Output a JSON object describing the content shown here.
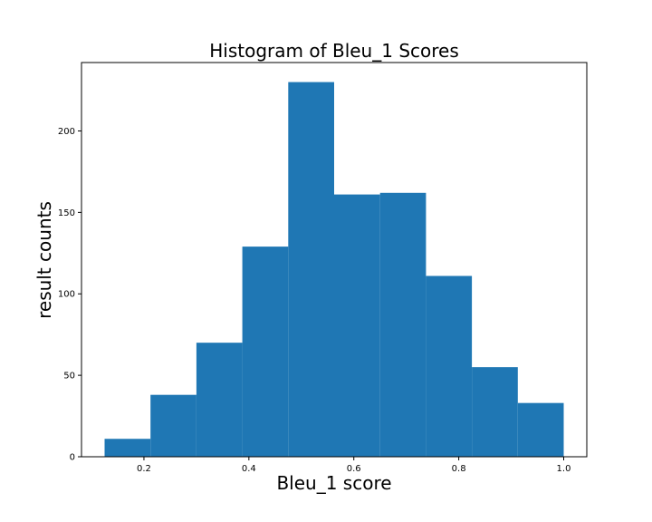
{
  "chart_data": {
    "type": "bar",
    "title": "Histogram of Bleu_1 Scores",
    "xlabel": "Bleu_1 score",
    "ylabel": "result counts",
    "xlim": [
      0.081,
      1.044
    ],
    "ylim": [
      0,
      242
    ],
    "bar_color": "#1f77b4",
    "bins": [
      {
        "x0": 0.125,
        "x1": 0.2125,
        "count": 11
      },
      {
        "x0": 0.2125,
        "x1": 0.3,
        "count": 38
      },
      {
        "x0": 0.3,
        "x1": 0.3875,
        "count": 70
      },
      {
        "x0": 0.3875,
        "x1": 0.475,
        "count": 129
      },
      {
        "x0": 0.475,
        "x1": 0.5625,
        "count": 230
      },
      {
        "x0": 0.5625,
        "x1": 0.65,
        "count": 161
      },
      {
        "x0": 0.65,
        "x1": 0.7375,
        "count": 162
      },
      {
        "x0": 0.7375,
        "x1": 0.825,
        "count": 111
      },
      {
        "x0": 0.825,
        "x1": 0.9125,
        "count": 55
      },
      {
        "x0": 0.9125,
        "x1": 1.0,
        "count": 33
      }
    ],
    "xticks": [
      0.2,
      0.4,
      0.6,
      0.8,
      1.0
    ],
    "xtick_labels": [
      "0.2",
      "0.4",
      "0.6",
      "0.8",
      "1.0"
    ],
    "yticks": [
      0,
      50,
      100,
      150,
      200
    ],
    "ytick_labels": [
      "0",
      "50",
      "100",
      "150",
      "200"
    ],
    "grid": false,
    "legend": false
  }
}
